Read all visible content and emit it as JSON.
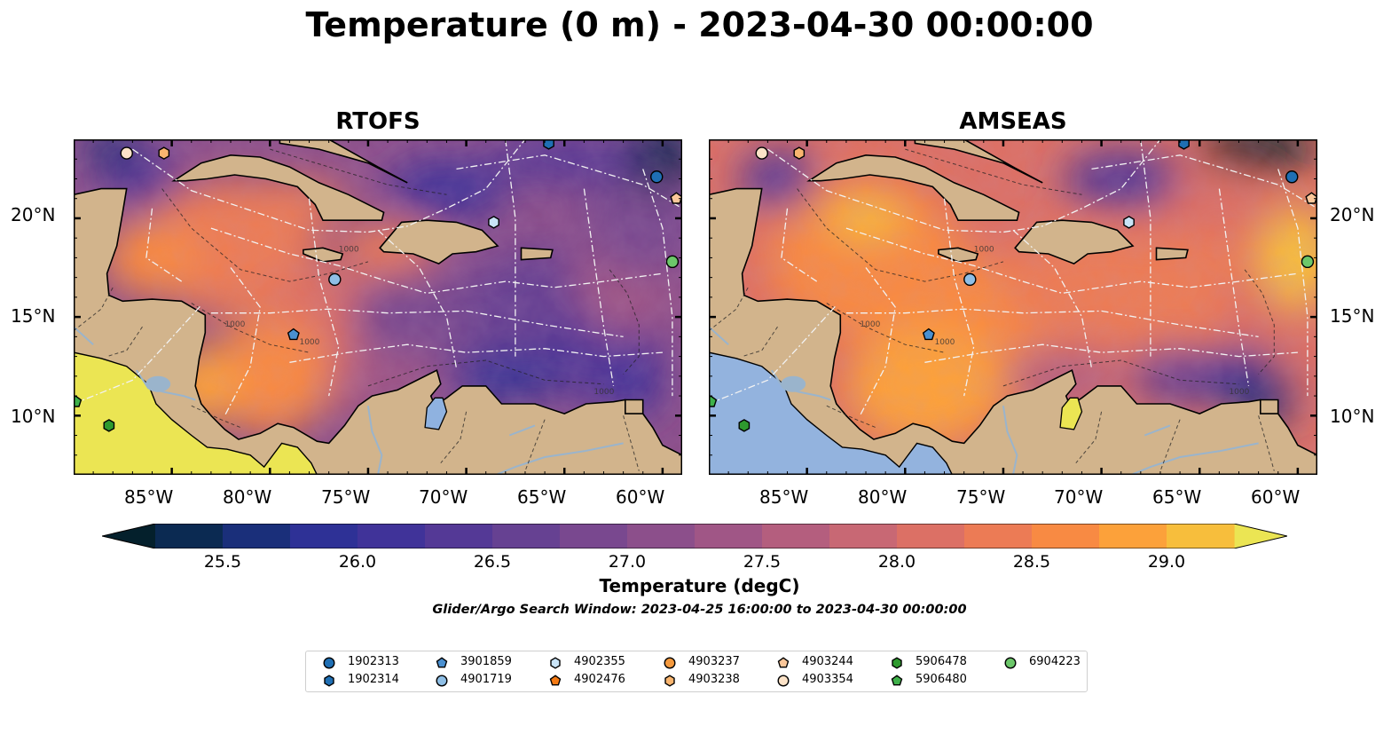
{
  "title": "Temperature (0 m) - 2023-04-30 00:00:00",
  "panels": [
    {
      "title": "RTOFS",
      "model": "rtofs"
    },
    {
      "title": "AMSEAS",
      "model": "amseas"
    }
  ],
  "map": {
    "lon_range": [
      -90,
      -59
    ],
    "lat_range": [
      7,
      24
    ],
    "lon_ticks": [
      "85°W",
      "80°W",
      "75°W",
      "70°W",
      "65°W",
      "60°W"
    ],
    "lat_ticks": [
      "20°N",
      "15°N",
      "10°N"
    ],
    "land_color": "#d2b48c",
    "river_color": "#9ab4cc",
    "isobath_label": "1000"
  },
  "colorbar": {
    "label": "Temperature (degC)",
    "min": 25.25,
    "max": 29.25,
    "step": 0.25,
    "ticks": [
      "25.5",
      "26.0",
      "26.5",
      "27.0",
      "27.5",
      "28.0",
      "28.5",
      "29.0"
    ],
    "extend": "both",
    "colors": [
      "#04202c",
      "#0b2a52",
      "#1a2f7a",
      "#2e3196",
      "#403399",
      "#543996",
      "#664192",
      "#79488f",
      "#8c4f8b",
      "#a05686",
      "#b45e7e",
      "#c86874",
      "#dc7065",
      "#ec7b55",
      "#f88a43",
      "#fca13a",
      "#f7be3c",
      "#ebe553"
    ]
  },
  "search_window": "Glider/Argo Search Window: 2023-04-25 16:00:00 to 2023-04-30 00:00:00",
  "legend": [
    {
      "id": "1902313",
      "marker": "circle",
      "color": "#1f6fb4"
    },
    {
      "id": "1902314",
      "marker": "hexagon",
      "color": "#1f6fb4"
    },
    {
      "id": "3901859",
      "marker": "pentagon",
      "color": "#4a90d0"
    },
    {
      "id": "4901719",
      "marker": "circle",
      "color": "#8fbfe6"
    },
    {
      "id": "4902355",
      "marker": "hexagon",
      "color": "#c9e4f7"
    },
    {
      "id": "4902476",
      "marker": "pentagon",
      "color": "#f47a14"
    },
    {
      "id": "4903237",
      "marker": "circle",
      "color": "#f59a3e"
    },
    {
      "id": "4903238",
      "marker": "hexagon",
      "color": "#f9b56f"
    },
    {
      "id": "4903244",
      "marker": "pentagon",
      "color": "#fbc79a"
    },
    {
      "id": "4903354",
      "marker": "circle",
      "color": "#fde3c8"
    },
    {
      "id": "5906478",
      "marker": "hexagon",
      "color": "#2e9a2e"
    },
    {
      "id": "5906480",
      "marker": "pentagon",
      "color": "#3fb14a"
    },
    {
      "id": "6904223",
      "marker": "circle",
      "color": "#6cc76a"
    }
  ],
  "floats": [
    {
      "id": "4903354",
      "lon": -87.3,
      "lat": 23.3
    },
    {
      "id": "4903238",
      "lon": -85.4,
      "lat": 23.3
    },
    {
      "id": "1902313",
      "lon": -60.3,
      "lat": 22.1
    },
    {
      "id": "4903244",
      "lon": -59.3,
      "lat": 21.0
    },
    {
      "id": "4902355",
      "lon": -68.6,
      "lat": 19.8
    },
    {
      "id": "6904223",
      "lon": -59.5,
      "lat": 17.8
    },
    {
      "id": "4901719",
      "lon": -76.7,
      "lat": 16.9
    },
    {
      "id": "3901859",
      "lon": -78.8,
      "lat": 14.1
    },
    {
      "id": "5906480",
      "lon": -89.9,
      "lat": 10.7
    },
    {
      "id": "5906478",
      "lon": -88.2,
      "lat": 9.5
    },
    {
      "id": "1902314",
      "lon": -65.8,
      "lat": 23.8
    }
  ]
}
